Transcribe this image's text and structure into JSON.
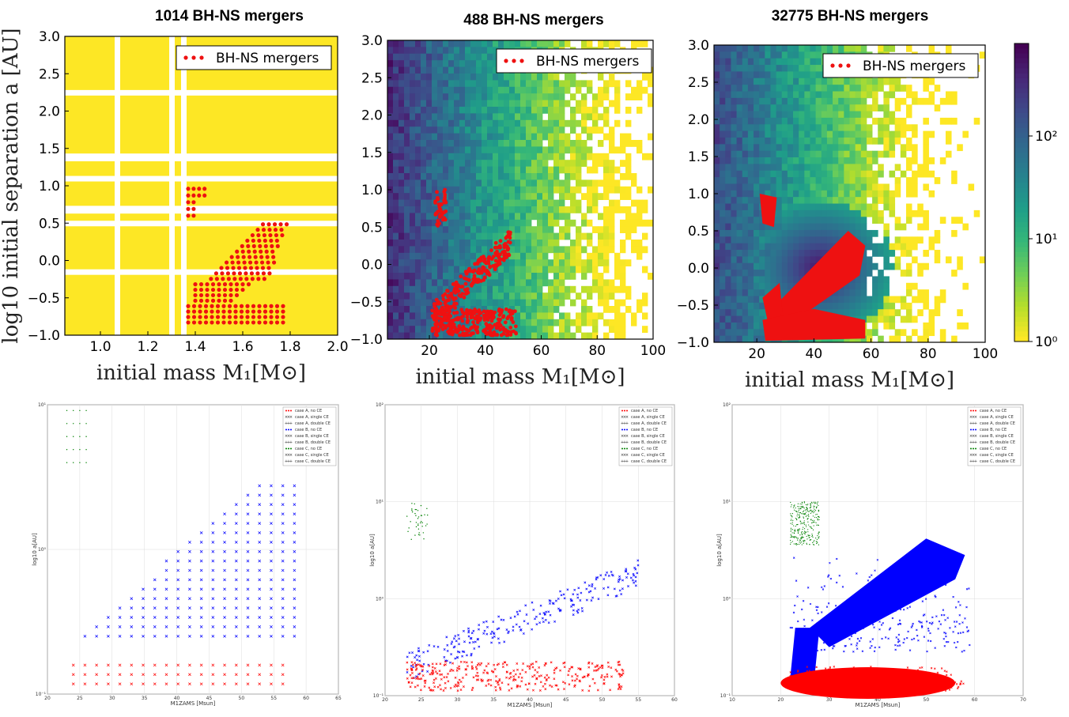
{
  "top_titles": [
    "1014 BH-NS mergers",
    "488 BH-NS mergers",
    "32775 BH-NS mergers"
  ],
  "top_xlabel": "initial mass M₁[M⊙]",
  "top_ylabel": "log10 initial separation a [AU]",
  "legend_label": "BH-NS mergers",
  "colors": {
    "merger": "#ee1111",
    "yellow": "#fde725",
    "caseA": "#ff0000",
    "caseB": "#0000ff",
    "caseC": "#008000"
  },
  "colorbar": {
    "ticks": [
      "10⁰",
      "10¹",
      "10²"
    ],
    "colormap": "viridis_r"
  },
  "bottom_xlabel": "M1ZAMS [Msun]",
  "bottom_ylabel": "log10 a[AU]",
  "bottom_legend": [
    "case A, no CE",
    "case A, single CE",
    "case A, double CE",
    "case B, no CE",
    "case B, single CE",
    "case B, double CE",
    "case C, no CE",
    "case C, single CE",
    "case C, double CE"
  ],
  "chart_data": [
    {
      "type": "scatter",
      "title": "1014 BH-NS mergers",
      "xlabel": "initial mass M₁[M⊙]",
      "ylabel": "log10 initial separation a [AU]",
      "xlim": [
        0.85,
        2.0
      ],
      "ylim": [
        -1.0,
        3.0
      ],
      "xticks": [
        "1.0",
        "1.2",
        "1.4",
        "1.6",
        "1.8",
        "2.0"
      ],
      "yticks": [
        "−1.0",
        "−0.5",
        "0.0",
        "0.5",
        "1.0",
        "1.5",
        "2.0",
        "2.5",
        "3.0"
      ],
      "legend": "BH-NS mergers",
      "legend_position": "top-right",
      "background": "uniform yellow grid"
    },
    {
      "type": "heatmap",
      "title": "488 BH-NS mergers",
      "xlabel": "initial mass M₁[M⊙]",
      "xlim": [
        5,
        100
      ],
      "ylim": [
        -1.0,
        3.0
      ],
      "xticks": [
        "20",
        "40",
        "60",
        "80",
        "100"
      ],
      "yticks": [
        "−1.0",
        "−0.5",
        "0.0",
        "0.5",
        "1.0",
        "1.5",
        "2.0",
        "2.5",
        "3.0"
      ],
      "legend": "BH-NS mergers",
      "legend_position": "top-right"
    },
    {
      "type": "heatmap",
      "title": "32775 BH-NS mergers",
      "xlabel": "initial mass M₁[M⊙]",
      "xlim": [
        5,
        100
      ],
      "ylim": [
        -1.0,
        3.0
      ],
      "xticks": [
        "20",
        "40",
        "60",
        "80",
        "100"
      ],
      "yticks": [
        "−1.0",
        "−0.5",
        "0.0",
        "0.5",
        "1.0",
        "1.5",
        "2.0",
        "2.5",
        "3.0"
      ],
      "legend": "BH-NS mergers",
      "legend_position": "top-right",
      "colorbar_scale": "log",
      "colorbar_range": [
        1,
        600
      ]
    },
    {
      "type": "scatter",
      "xlabel": "M1ZAMS [Msun]",
      "ylabel": "log10 a[AU]",
      "xlim": [
        20,
        65
      ],
      "xticks": [
        "20",
        "25",
        "30",
        "35",
        "40",
        "45",
        "50",
        "55",
        "60",
        "65"
      ],
      "yticks": [
        "10⁻¹",
        "10⁰",
        "10¹"
      ],
      "legend_position": "top-right"
    },
    {
      "type": "scatter",
      "xlabel": "M1ZAMS [Msun]",
      "ylabel": "log10 a[AU]",
      "xlim": [
        20,
        60
      ],
      "xticks": [
        "20",
        "25",
        "30",
        "35",
        "40",
        "45",
        "50",
        "55",
        "60"
      ],
      "yticks": [
        "10⁻¹",
        "10⁰",
        "10¹",
        "10²"
      ],
      "legend_position": "top-right"
    },
    {
      "type": "scatter",
      "xlabel": "M1ZAMS [Msun]",
      "ylabel": "log10 a[AU]",
      "xlim": [
        10,
        70
      ],
      "xticks": [
        "10",
        "20",
        "30",
        "40",
        "50",
        "60",
        "70"
      ],
      "yticks": [
        "10⁻¹",
        "10⁰",
        "10¹",
        "10²"
      ],
      "legend_position": "top-right"
    }
  ]
}
